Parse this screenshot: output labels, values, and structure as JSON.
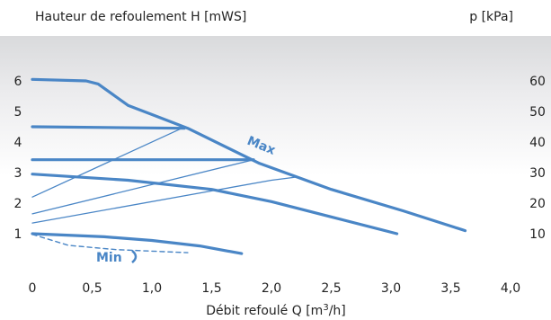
{
  "chart_data": {
    "type": "line",
    "title": "",
    "ylabel_left": "Hauteur de refoulement H [mWS]",
    "ylabel_right": "p [kPa]",
    "xlabel": "Débit refoulé Q [m³/h]",
    "xlim": [
      0,
      4.0
    ],
    "ylim": [
      0,
      7
    ],
    "xticks": [
      "0",
      "0,5",
      "1,0",
      "1,5",
      "2,0",
      "2,5",
      "3,0",
      "3,5",
      "4,0"
    ],
    "yticks_left": [
      "1",
      "2",
      "3",
      "4",
      "5",
      "6"
    ],
    "yticks_right": [
      "10",
      "20",
      "30",
      "40",
      "50",
      "60"
    ],
    "grid": false,
    "background": "gradient grey-to-white",
    "line_color": "#4a86c6",
    "annotations": [
      "Max",
      "Min"
    ],
    "series": [
      {
        "style": "thick",
        "x": [
          0,
          0.45,
          0.55,
          0.8,
          1.3,
          1.9,
          2.5,
          3.1,
          3.62
        ],
        "y": [
          6.05,
          6.0,
          5.9,
          5.2,
          4.45,
          3.3,
          2.45,
          1.75,
          1.1
        ]
      },
      {
        "style": "thick",
        "x": [
          0,
          1.27
        ],
        "y": [
          4.5,
          4.45
        ]
      },
      {
        "style": "thick",
        "x": [
          0,
          1.85
        ],
        "y": [
          3.42,
          3.42
        ]
      },
      {
        "style": "thick",
        "x": [
          0,
          0.8,
          1.5,
          2.0,
          2.5,
          3.05
        ],
        "y": [
          2.95,
          2.75,
          2.45,
          2.05,
          1.55,
          1.0
        ]
      },
      {
        "style": "thick",
        "x": [
          0,
          0.6,
          1.0,
          1.4,
          1.75
        ],
        "y": [
          1.0,
          0.9,
          0.78,
          0.6,
          0.35
        ]
      },
      {
        "style": "thin",
        "x": [
          0,
          1.25
        ],
        "y": [
          2.2,
          4.45
        ]
      },
      {
        "style": "thin",
        "x": [
          0,
          1.85
        ],
        "y": [
          1.65,
          3.42
        ]
      },
      {
        "style": "thin",
        "x": [
          0,
          1.5,
          2.0,
          2.2
        ],
        "y": [
          1.35,
          2.4,
          2.75,
          2.85
        ]
      },
      {
        "style": "dashed",
        "x": [
          0,
          0.3,
          0.7,
          1.3
        ],
        "y": [
          0.98,
          0.62,
          0.48,
          0.38
        ]
      }
    ]
  }
}
